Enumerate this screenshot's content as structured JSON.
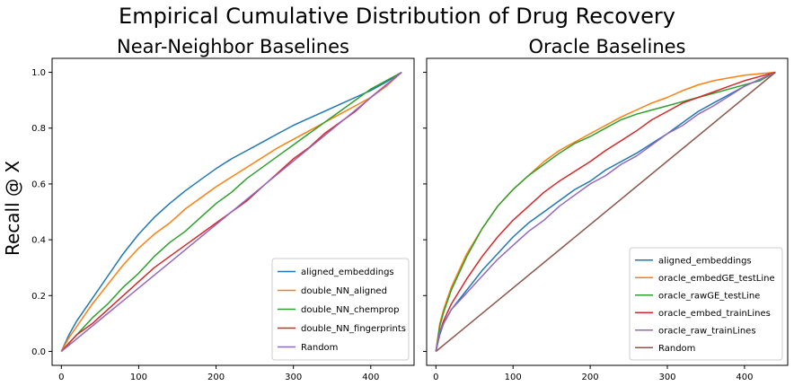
{
  "suptitle": "Empirical Cumulative Distribution of Drug Recovery",
  "shared_ylabel": "Recall @ X",
  "chart_data": [
    {
      "type": "line",
      "title": "Near-Neighbor Baselines",
      "xlabel": "",
      "ylabel": "Recall @ X",
      "xlim": [
        -12,
        456
      ],
      "ylim": [
        -0.05,
        1.05
      ],
      "xticks": [
        0,
        100,
        200,
        300,
        400
      ],
      "yticks": [
        0.0,
        0.2,
        0.4,
        0.6,
        0.8,
        1.0
      ],
      "ytick_labels": [
        "0.0",
        "0.2",
        "0.4",
        "0.6",
        "0.8",
        "1.0"
      ],
      "grid": false,
      "legend": "lower-right",
      "series": [
        {
          "name": "aligned_embeddings",
          "color": "#1f77b4",
          "x": [
            0,
            10,
            20,
            40,
            60,
            80,
            100,
            120,
            140,
            160,
            180,
            200,
            220,
            240,
            260,
            280,
            300,
            320,
            340,
            360,
            380,
            400,
            420,
            440
          ],
          "y": [
            0.0,
            0.06,
            0.11,
            0.19,
            0.27,
            0.35,
            0.42,
            0.48,
            0.53,
            0.575,
            0.615,
            0.655,
            0.69,
            0.72,
            0.75,
            0.78,
            0.81,
            0.835,
            0.86,
            0.885,
            0.91,
            0.935,
            0.965,
            1.0
          ]
        },
        {
          "name": "double_NN_aligned",
          "color": "#ff7f0e",
          "x": [
            0,
            10,
            20,
            40,
            60,
            80,
            100,
            120,
            140,
            160,
            180,
            200,
            220,
            240,
            260,
            280,
            300,
            320,
            340,
            360,
            380,
            400,
            420,
            440
          ],
          "y": [
            0.0,
            0.05,
            0.09,
            0.17,
            0.24,
            0.31,
            0.37,
            0.42,
            0.46,
            0.51,
            0.55,
            0.59,
            0.625,
            0.66,
            0.695,
            0.73,
            0.76,
            0.79,
            0.82,
            0.85,
            0.88,
            0.91,
            0.95,
            1.0
          ]
        },
        {
          "name": "double_NN_chemprop",
          "color": "#2ca02c",
          "x": [
            0,
            20,
            40,
            60,
            80,
            100,
            120,
            140,
            160,
            180,
            200,
            220,
            240,
            260,
            280,
            300,
            320,
            340,
            360,
            380,
            400,
            420,
            440
          ],
          "y": [
            0.0,
            0.06,
            0.12,
            0.17,
            0.23,
            0.28,
            0.34,
            0.39,
            0.43,
            0.48,
            0.53,
            0.57,
            0.62,
            0.66,
            0.7,
            0.74,
            0.78,
            0.82,
            0.86,
            0.9,
            0.94,
            0.97,
            1.0
          ]
        },
        {
          "name": "double_NN_fingerprints",
          "color": "#d62728",
          "x": [
            0,
            20,
            40,
            60,
            80,
            100,
            120,
            140,
            160,
            180,
            200,
            220,
            240,
            260,
            280,
            300,
            320,
            340,
            360,
            380,
            400,
            420,
            440
          ],
          "y": [
            0.0,
            0.06,
            0.1,
            0.15,
            0.2,
            0.25,
            0.3,
            0.34,
            0.38,
            0.42,
            0.46,
            0.5,
            0.54,
            0.59,
            0.64,
            0.69,
            0.73,
            0.78,
            0.82,
            0.86,
            0.91,
            0.955,
            1.0
          ]
        },
        {
          "name": "Random",
          "color": "#9467bd",
          "x": [
            0,
            440
          ],
          "y": [
            0.0,
            1.0
          ]
        }
      ]
    },
    {
      "type": "line",
      "title": "Oracle Baselines",
      "xlabel": "",
      "ylabel": "",
      "xlim": [
        -12,
        456
      ],
      "ylim": [
        -0.05,
        1.05
      ],
      "xticks": [
        0,
        100,
        200,
        300,
        400
      ],
      "yticks": [
        0.0,
        0.2,
        0.4,
        0.6,
        0.8,
        1.0
      ],
      "grid": false,
      "legend": "lower-right",
      "series": [
        {
          "name": "aligned_embeddings",
          "color": "#1f77b4",
          "x": [
            0,
            5,
            10,
            20,
            40,
            60,
            80,
            100,
            120,
            140,
            160,
            180,
            200,
            220,
            240,
            260,
            280,
            300,
            320,
            340,
            360,
            380,
            400,
            420,
            440
          ],
          "y": [
            0.0,
            0.06,
            0.1,
            0.15,
            0.22,
            0.29,
            0.35,
            0.41,
            0.46,
            0.5,
            0.54,
            0.58,
            0.61,
            0.65,
            0.68,
            0.71,
            0.745,
            0.78,
            0.82,
            0.86,
            0.89,
            0.92,
            0.95,
            0.975,
            1.0
          ]
        },
        {
          "name": "oracle_embedGE_testLine",
          "color": "#ff7f0e",
          "x": [
            0,
            5,
            10,
            20,
            40,
            60,
            80,
            100,
            120,
            140,
            160,
            180,
            200,
            220,
            240,
            260,
            280,
            300,
            320,
            340,
            360,
            380,
            400,
            420,
            440
          ],
          "y": [
            0.0,
            0.1,
            0.15,
            0.23,
            0.35,
            0.44,
            0.52,
            0.58,
            0.63,
            0.68,
            0.72,
            0.75,
            0.78,
            0.81,
            0.84,
            0.865,
            0.89,
            0.91,
            0.935,
            0.955,
            0.97,
            0.98,
            0.99,
            0.995,
            1.0
          ]
        },
        {
          "name": "oracle_rawGE_testLine",
          "color": "#2ca02c",
          "x": [
            0,
            5,
            10,
            20,
            40,
            60,
            80,
            100,
            120,
            140,
            160,
            180,
            200,
            220,
            240,
            260,
            280,
            300,
            320,
            340,
            360,
            380,
            400,
            420,
            440
          ],
          "y": [
            0.0,
            0.09,
            0.14,
            0.22,
            0.34,
            0.44,
            0.52,
            0.58,
            0.63,
            0.67,
            0.71,
            0.745,
            0.77,
            0.8,
            0.83,
            0.85,
            0.865,
            0.88,
            0.895,
            0.91,
            0.925,
            0.94,
            0.955,
            0.97,
            1.0
          ]
        },
        {
          "name": "oracle_embed_trainLines",
          "color": "#d62728",
          "x": [
            0,
            5,
            10,
            20,
            40,
            60,
            80,
            100,
            120,
            140,
            160,
            180,
            200,
            220,
            240,
            260,
            280,
            300,
            320,
            340,
            360,
            380,
            400,
            420,
            440
          ],
          "y": [
            0.0,
            0.07,
            0.11,
            0.17,
            0.26,
            0.34,
            0.41,
            0.47,
            0.52,
            0.57,
            0.61,
            0.645,
            0.68,
            0.72,
            0.755,
            0.79,
            0.83,
            0.86,
            0.89,
            0.91,
            0.93,
            0.95,
            0.97,
            0.985,
            1.0
          ]
        },
        {
          "name": "oracle_raw_trainLines",
          "color": "#9467bd",
          "x": [
            0,
            5,
            10,
            20,
            40,
            60,
            80,
            100,
            120,
            140,
            160,
            180,
            200,
            220,
            240,
            260,
            280,
            300,
            320,
            340,
            360,
            380,
            400,
            420,
            440
          ],
          "y": [
            0.0,
            0.07,
            0.1,
            0.15,
            0.21,
            0.27,
            0.33,
            0.38,
            0.43,
            0.47,
            0.52,
            0.56,
            0.6,
            0.63,
            0.67,
            0.7,
            0.74,
            0.78,
            0.81,
            0.85,
            0.88,
            0.915,
            0.95,
            0.975,
            1.0
          ]
        },
        {
          "name": "Random",
          "color": "#8c564b",
          "x": [
            0,
            440
          ],
          "y": [
            0.0,
            1.0
          ]
        }
      ]
    }
  ]
}
